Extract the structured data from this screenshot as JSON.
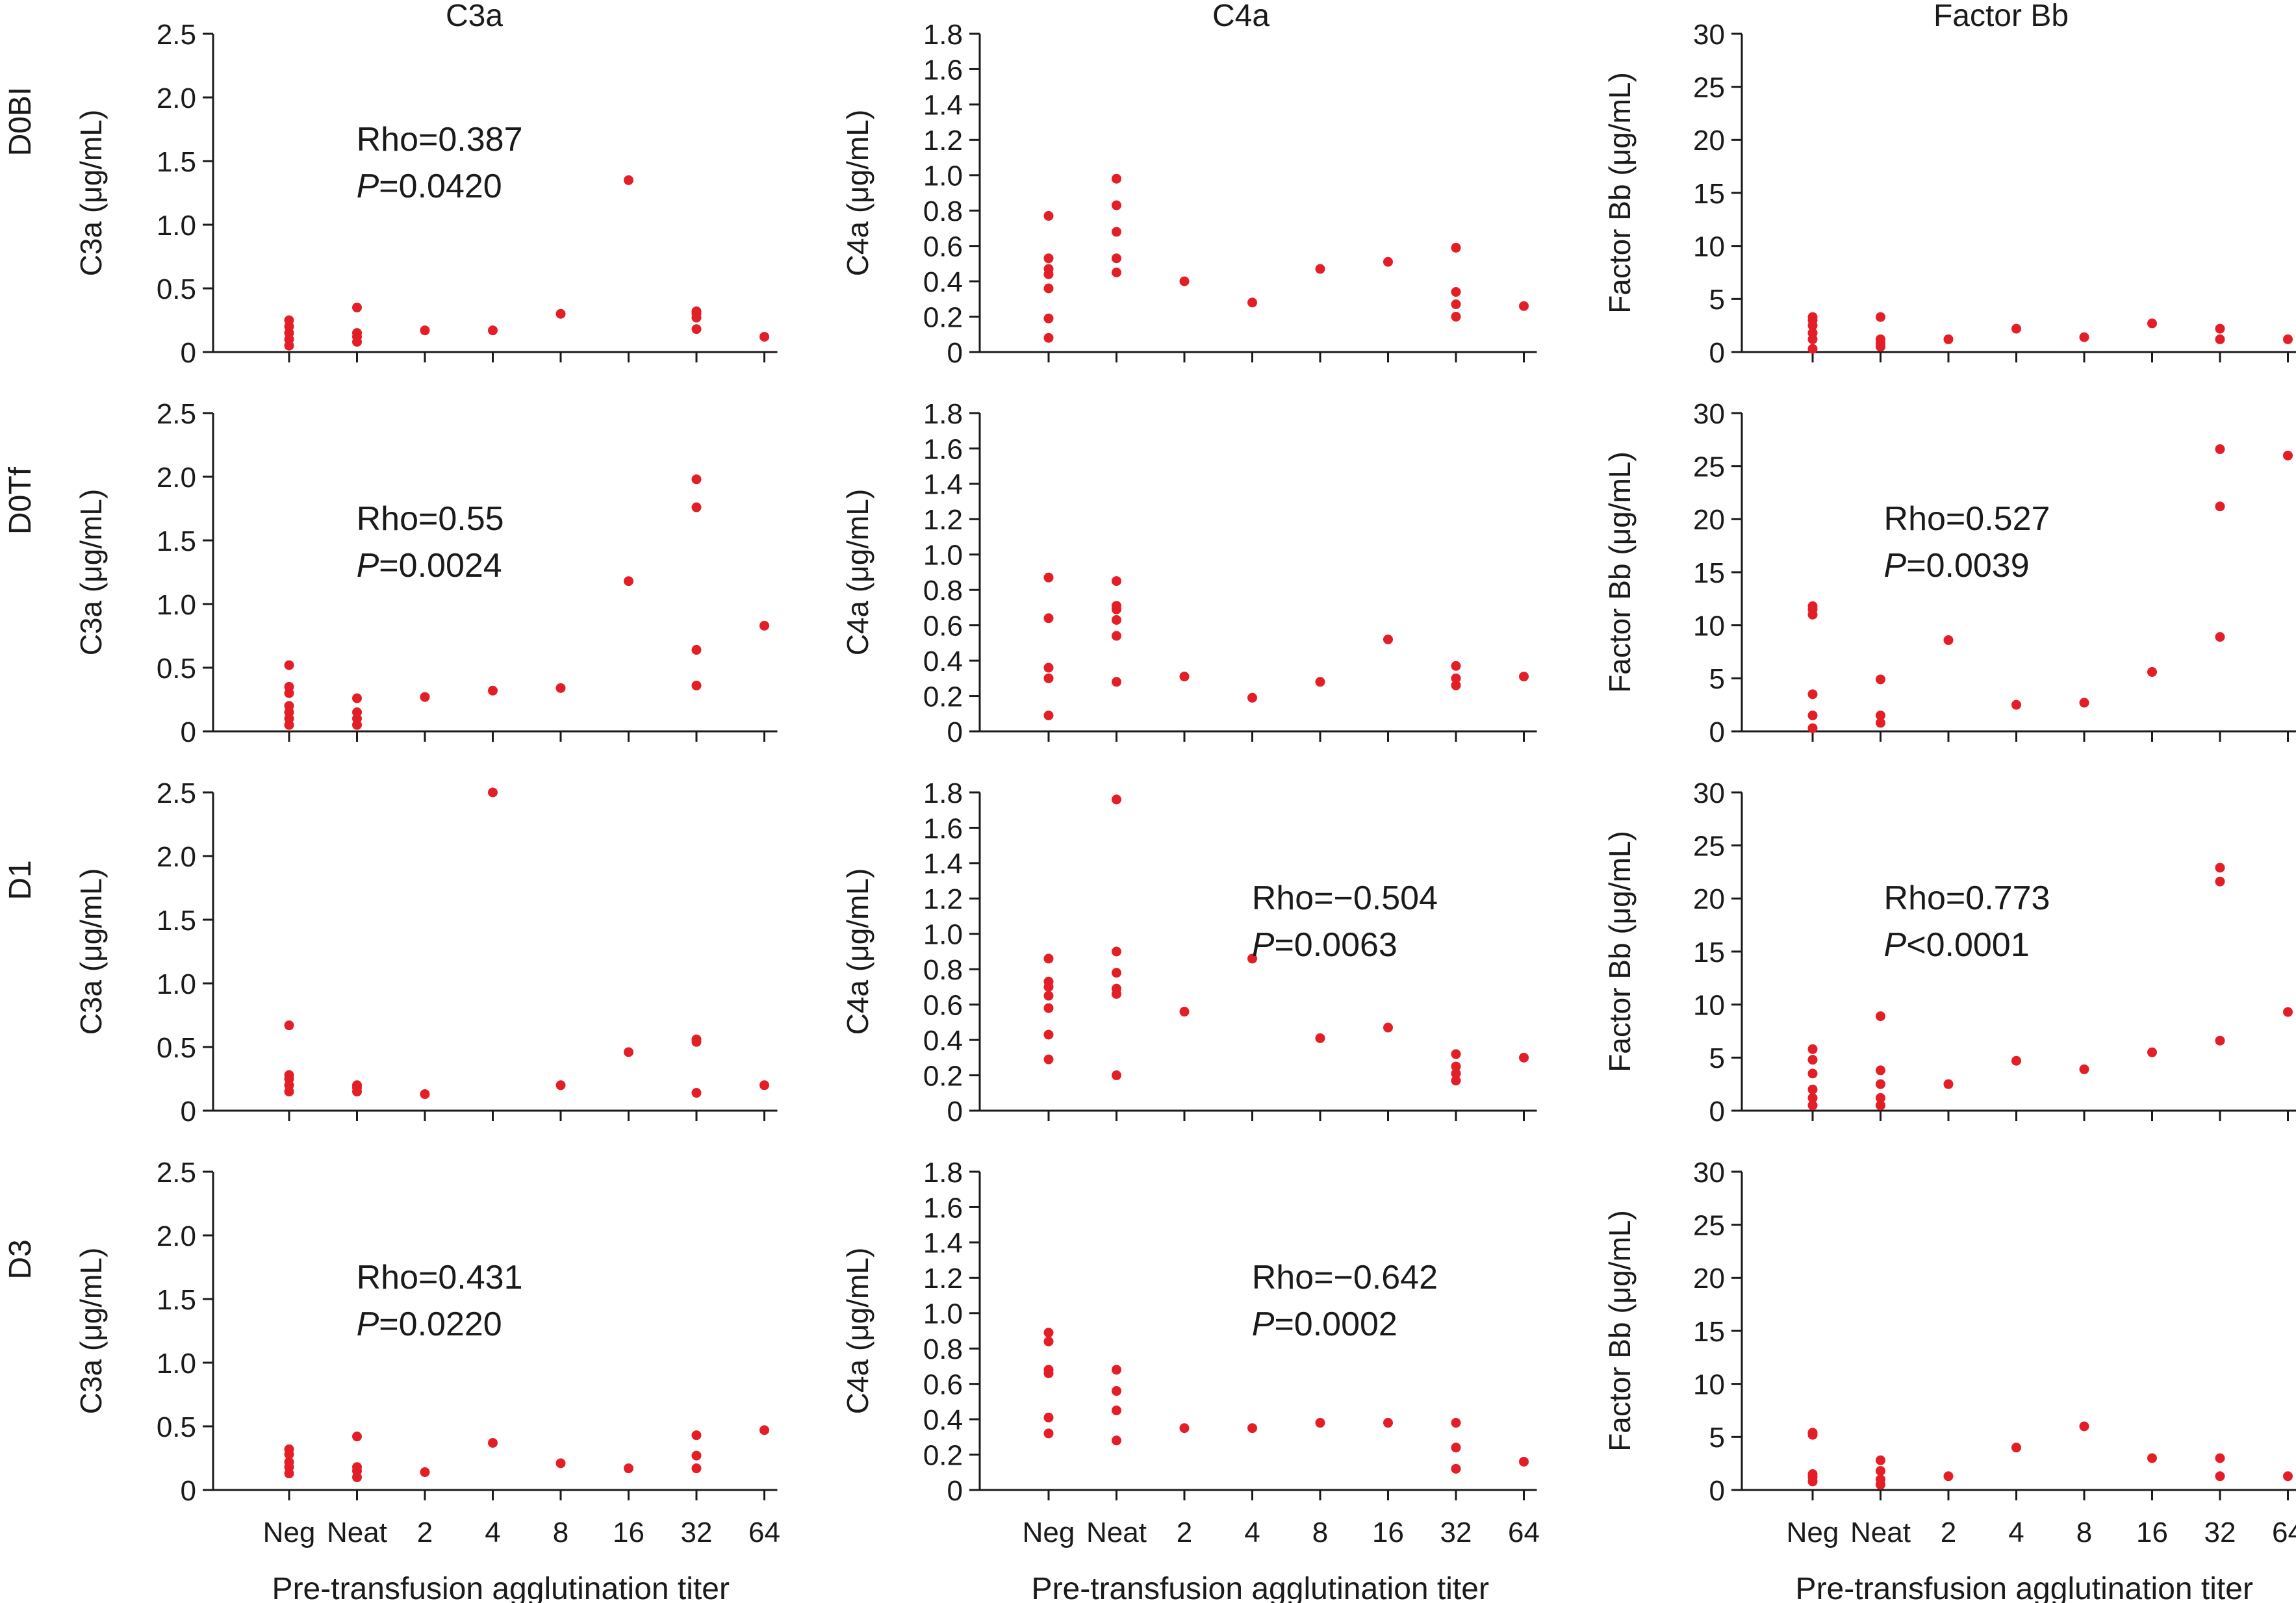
{
  "chart_data": {
    "type": "scatter",
    "figure": {
      "columns": [
        "C3a",
        "C4a",
        "Factor Bb"
      ],
      "rows": [
        "D0BI",
        "D0Tf",
        "D1",
        "D3"
      ],
      "xlabel": "Pre-transfusion agglutination titer",
      "categories": [
        "Neg",
        "Neat",
        "2",
        "4",
        "8",
        "16",
        "32",
        "64"
      ]
    },
    "columns": [
      {
        "title": "C3a",
        "ylabel": "C3a (μg/mL)",
        "ylim": [
          0,
          2.5
        ],
        "ticks": [
          0,
          0.5,
          1.0,
          1.5,
          2.0,
          2.5
        ],
        "tick_labels": [
          "0",
          "0.5",
          "1.0",
          "1.5",
          "2.0",
          "2.5"
        ]
      },
      {
        "title": "C4a",
        "ylabel": "C4a (μg/mL)",
        "ylim": [
          0,
          1.8
        ],
        "ticks": [
          0,
          0.2,
          0.4,
          0.6,
          0.8,
          1.0,
          1.2,
          1.4,
          1.6,
          1.8
        ],
        "tick_labels": [
          "0",
          "0.2",
          "0.4",
          "0.6",
          "0.8",
          "1.0",
          "1.2",
          "1.4",
          "1.6",
          "1.8"
        ]
      },
      {
        "title": "Factor Bb",
        "ylabel": "Factor Bb (μg/mL)",
        "ylim": [
          0,
          30
        ],
        "ticks": [
          0,
          5,
          10,
          15,
          20,
          25,
          30
        ],
        "tick_labels": [
          "0",
          "5",
          "10",
          "15",
          "20",
          "25",
          "30"
        ]
      }
    ],
    "panels": [
      {
        "row": 0,
        "col": 0,
        "annotation": {
          "rho": "Rho=0.387",
          "p_prefix": "P",
          "p_value": "=0.0420",
          "pos": "upper-middle"
        },
        "points": {
          "Neg": [
            0.05,
            0.1,
            0.15,
            0.2,
            0.25
          ],
          "Neat": [
            0.08,
            0.12,
            0.15,
            0.35
          ],
          "2": [
            0.17
          ],
          "4": [
            0.17
          ],
          "8": [
            0.3
          ],
          "16": [
            1.35
          ],
          "32": [
            0.18,
            0.27,
            0.3,
            0.32
          ],
          "64": [
            0.12
          ]
        }
      },
      {
        "row": 0,
        "col": 1,
        "annotation": null,
        "points": {
          "Neg": [
            0.08,
            0.19,
            0.36,
            0.44,
            0.47,
            0.53,
            0.77
          ],
          "Neat": [
            0.45,
            0.53,
            0.68,
            0.83,
            0.98
          ],
          "2": [
            0.4
          ],
          "4": [
            0.28
          ],
          "8": [
            0.47
          ],
          "16": [
            0.51
          ],
          "32": [
            0.2,
            0.27,
            0.34,
            0.59
          ],
          "64": [
            0.26
          ]
        }
      },
      {
        "row": 0,
        "col": 2,
        "annotation": null,
        "points": {
          "Neg": [
            0.3,
            1.2,
            1.8,
            2.5,
            3.0,
            3.3
          ],
          "Neat": [
            0.5,
            0.8,
            1.2,
            3.3
          ],
          "2": [
            1.2
          ],
          "4": [
            2.2
          ],
          "8": [
            1.4
          ],
          "16": [
            2.7
          ],
          "32": [
            1.2,
            2.2
          ],
          "64": [
            1.2
          ]
        }
      },
      {
        "row": 1,
        "col": 0,
        "annotation": {
          "rho": "Rho=0.55",
          "p_prefix": "P",
          "p_value": "=0.0024",
          "pos": "upper-middle"
        },
        "points": {
          "Neg": [
            0.05,
            0.1,
            0.15,
            0.2,
            0.3,
            0.35,
            0.52
          ],
          "Neat": [
            0.05,
            0.1,
            0.15,
            0.26
          ],
          "2": [
            0.27
          ],
          "4": [
            0.32
          ],
          "8": [
            0.34
          ],
          "16": [
            1.18
          ],
          "32": [
            0.36,
            0.64,
            1.76,
            1.98
          ],
          "64": [
            0.83
          ]
        }
      },
      {
        "row": 1,
        "col": 1,
        "annotation": null,
        "points": {
          "Neg": [
            0.09,
            0.3,
            0.36,
            0.64,
            0.87
          ],
          "Neat": [
            0.28,
            0.54,
            0.63,
            0.69,
            0.71,
            0.85
          ],
          "2": [
            0.31
          ],
          "4": [
            0.19
          ],
          "8": [
            0.28
          ],
          "16": [
            0.52
          ],
          "32": [
            0.26,
            0.3,
            0.37
          ],
          "64": [
            0.31
          ]
        }
      },
      {
        "row": 1,
        "col": 2,
        "annotation": {
          "rho": "Rho=0.527",
          "p_prefix": "P",
          "p_value": "=0.0039",
          "pos": "upper-middle"
        },
        "points": {
          "Neg": [
            0.3,
            1.5,
            3.5,
            11.0,
            11.5,
            11.8
          ],
          "Neat": [
            0.8,
            1.5,
            4.9
          ],
          "2": [
            8.6
          ],
          "4": [
            2.5
          ],
          "8": [
            2.7
          ],
          "16": [
            5.6
          ],
          "32": [
            8.9,
            21.2,
            26.6
          ],
          "64": [
            26.0
          ]
        }
      },
      {
        "row": 2,
        "col": 0,
        "annotation": null,
        "points": {
          "Neg": [
            0.15,
            0.2,
            0.25,
            0.28,
            0.67
          ],
          "Neat": [
            0.15,
            0.18,
            0.2
          ],
          "2": [
            0.13
          ],
          "4": [
            2.5
          ],
          "8": [
            0.2
          ],
          "16": [
            0.46
          ],
          "32": [
            0.14,
            0.54,
            0.56
          ],
          "64": [
            0.2
          ]
        }
      },
      {
        "row": 2,
        "col": 1,
        "annotation": {
          "rho": "Rho=−0.504",
          "p_prefix": "P",
          "p_value": "=0.0063",
          "pos": "upper-right"
        },
        "points": {
          "Neg": [
            0.29,
            0.43,
            0.58,
            0.65,
            0.7,
            0.73,
            0.86
          ],
          "Neat": [
            0.2,
            0.66,
            0.69,
            0.78,
            0.9,
            1.76
          ],
          "2": [
            0.56
          ],
          "4": [
            0.86
          ],
          "8": [
            0.41
          ],
          "16": [
            0.47
          ],
          "32": [
            0.17,
            0.21,
            0.25,
            0.32
          ],
          "64": [
            0.3
          ]
        }
      },
      {
        "row": 2,
        "col": 2,
        "annotation": {
          "rho": "Rho=0.773",
          "p_prefix": "P",
          "p_value": "<0.0001",
          "pos": "upper-middle"
        },
        "points": {
          "Neg": [
            0.5,
            1.2,
            2.0,
            3.5,
            4.8,
            5.8
          ],
          "Neat": [
            0.5,
            1.2,
            2.5,
            3.8,
            8.9
          ],
          "2": [
            2.5
          ],
          "4": [
            4.7
          ],
          "8": [
            3.9
          ],
          "16": [
            5.5
          ],
          "32": [
            6.6,
            21.6,
            22.9
          ],
          "64": [
            9.3
          ]
        }
      },
      {
        "row": 3,
        "col": 0,
        "annotation": {
          "rho": "Rho=0.431",
          "p_prefix": "P",
          "p_value": "=0.0220",
          "pos": "upper-middle"
        },
        "points": {
          "Neg": [
            0.13,
            0.18,
            0.22,
            0.28,
            0.32
          ],
          "Neat": [
            0.1,
            0.15,
            0.18,
            0.42
          ],
          "2": [
            0.14
          ],
          "4": [
            0.37
          ],
          "8": [
            0.21
          ],
          "16": [
            0.17
          ],
          "32": [
            0.17,
            0.27,
            0.43
          ],
          "64": [
            0.47
          ]
        }
      },
      {
        "row": 3,
        "col": 1,
        "annotation": {
          "rho": "Rho=−0.642",
          "p_prefix": "P",
          "p_value": "=0.0002",
          "pos": "upper-right"
        },
        "points": {
          "Neg": [
            0.32,
            0.41,
            0.66,
            0.68,
            0.84,
            0.89
          ],
          "Neat": [
            0.28,
            0.45,
            0.56,
            0.68
          ],
          "2": [
            0.35
          ],
          "4": [
            0.35
          ],
          "8": [
            0.38
          ],
          "16": [
            0.38
          ],
          "32": [
            0.12,
            0.24,
            0.38
          ],
          "64": [
            0.16
          ]
        }
      },
      {
        "row": 3,
        "col": 2,
        "annotation": null,
        "points": {
          "Neg": [
            0.8,
            1.2,
            1.5,
            5.2,
            5.4
          ],
          "Neat": [
            0.5,
            1.0,
            1.8,
            2.8
          ],
          "2": [
            1.3
          ],
          "4": [
            4.0
          ],
          "8": [
            6.0
          ],
          "16": [
            3.0
          ],
          "32": [
            1.3,
            3.0
          ],
          "64": [
            1.3
          ]
        }
      }
    ]
  }
}
